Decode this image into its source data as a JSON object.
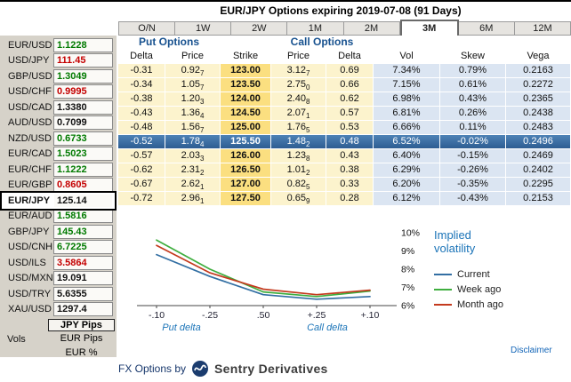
{
  "title": "EUR/JPY Options expiring 2019-07-08 (91 Days)",
  "tabs": [
    "O/N",
    "1W",
    "2W",
    "1M",
    "2M",
    "3M",
    "6M",
    "12M"
  ],
  "active_tab": "3M",
  "sidebar": {
    "vols_label": "Vols",
    "pairs": [
      {
        "pair": "EUR/USD",
        "rate": "1.1228",
        "trend": "up"
      },
      {
        "pair": "USD/JPY",
        "rate": "111.45",
        "trend": "down"
      },
      {
        "pair": "GBP/USD",
        "rate": "1.3049",
        "trend": "up"
      },
      {
        "pair": "USD/CHF",
        "rate": "0.9995",
        "trend": "down"
      },
      {
        "pair": "USD/CAD",
        "rate": "1.3380",
        "trend": "flat"
      },
      {
        "pair": "AUD/USD",
        "rate": "0.7099",
        "trend": "flat"
      },
      {
        "pair": "NZD/USD",
        "rate": "0.6733",
        "trend": "up"
      },
      {
        "pair": "EUR/CAD",
        "rate": "1.5023",
        "trend": "up"
      },
      {
        "pair": "EUR/CHF",
        "rate": "1.1222",
        "trend": "up"
      },
      {
        "pair": "EUR/GBP",
        "rate": "0.8605",
        "trend": "down"
      },
      {
        "pair": "EUR/JPY",
        "rate": "125.14",
        "trend": "flat",
        "selected": true
      },
      {
        "pair": "EUR/AUD",
        "rate": "1.5816",
        "trend": "up"
      },
      {
        "pair": "GBP/JPY",
        "rate": "145.43",
        "trend": "up"
      },
      {
        "pair": "USD/CNH",
        "rate": "6.7225",
        "trend": "up"
      },
      {
        "pair": "USD/ILS",
        "rate": "3.5864",
        "trend": "down"
      },
      {
        "pair": "USD/MXN",
        "rate": "19.091",
        "trend": "flat"
      },
      {
        "pair": "USD/TRY",
        "rate": "5.6355",
        "trend": "flat"
      },
      {
        "pair": "XAU/USD",
        "rate": "1297.4",
        "trend": "flat"
      }
    ],
    "modes": [
      {
        "label": "JPY Pips",
        "selected": true
      },
      {
        "label": "EUR Pips",
        "selected": false
      },
      {
        "label": "EUR %",
        "selected": false
      }
    ]
  },
  "table": {
    "put_header": "Put Options",
    "call_header": "Call Options",
    "columns": [
      "Delta",
      "Price",
      "Strike",
      "Price",
      "Delta",
      "Vol",
      "Skew",
      "Vega"
    ],
    "highlight_strike": "125.50",
    "rows": [
      {
        "put_delta": "-0.31",
        "put_price": "0.927",
        "strike": "123.00",
        "call_price": "3.127",
        "call_delta": "0.69",
        "vol": "7.34%",
        "skew": "0.79%",
        "vega": "0.2163"
      },
      {
        "put_delta": "-0.34",
        "put_price": "1.057",
        "strike": "123.50",
        "call_price": "2.750",
        "call_delta": "0.66",
        "vol": "7.15%",
        "skew": "0.61%",
        "vega": "0.2272"
      },
      {
        "put_delta": "-0.38",
        "put_price": "1.203",
        "strike": "124.00",
        "call_price": "2.408",
        "call_delta": "0.62",
        "vol": "6.98%",
        "skew": "0.43%",
        "vega": "0.2365"
      },
      {
        "put_delta": "-0.43",
        "put_price": "1.364",
        "strike": "124.50",
        "call_price": "2.071",
        "call_delta": "0.57",
        "vol": "6.81%",
        "skew": "0.26%",
        "vega": "0.2438"
      },
      {
        "put_delta": "-0.48",
        "put_price": "1.567",
        "strike": "125.00",
        "call_price": "1.765",
        "call_delta": "0.53",
        "vol": "6.66%",
        "skew": "0.11%",
        "vega": "0.2483"
      },
      {
        "put_delta": "-0.52",
        "put_price": "1.784",
        "strike": "125.50",
        "call_price": "1.482",
        "call_delta": "0.48",
        "vol": "6.52%",
        "skew": "-0.02%",
        "vega": "0.2496"
      },
      {
        "put_delta": "-0.57",
        "put_price": "2.033",
        "strike": "126.00",
        "call_price": "1.238",
        "call_delta": "0.43",
        "vol": "6.40%",
        "skew": "-0.15%",
        "vega": "0.2469"
      },
      {
        "put_delta": "-0.62",
        "put_price": "2.312",
        "strike": "126.50",
        "call_price": "1.012",
        "call_delta": "0.38",
        "vol": "6.29%",
        "skew": "-0.26%",
        "vega": "0.2402"
      },
      {
        "put_delta": "-0.67",
        "put_price": "2.621",
        "strike": "127.00",
        "call_price": "0.825",
        "call_delta": "0.33",
        "vol": "6.20%",
        "skew": "-0.35%",
        "vega": "0.2295"
      },
      {
        "put_delta": "-0.72",
        "put_price": "2.961",
        "strike": "127.50",
        "call_price": "0.659",
        "call_delta": "0.28",
        "vol": "6.12%",
        "skew": "-0.43%",
        "vega": "0.2153"
      }
    ]
  },
  "chart_data": {
    "type": "line",
    "legend_title": "Implied volatility",
    "x_ticks": [
      "-.10",
      "-.25",
      ".50",
      "+.25",
      "+.10"
    ],
    "x_axis_left_label": "Put delta",
    "x_axis_right_label": "Call delta",
    "y_ticks": [
      10,
      9,
      8,
      7,
      6
    ],
    "y_tick_labels": [
      "10%",
      "9%",
      "8%",
      "7%",
      "6%"
    ],
    "ylim": [
      6,
      10
    ],
    "series": [
      {
        "name": "Current",
        "color": "#336fa3",
        "values": [
          8.8,
          7.6,
          6.6,
          6.35,
          6.5
        ]
      },
      {
        "name": "Week ago",
        "color": "#3fae3f",
        "values": [
          9.6,
          8.0,
          6.75,
          6.5,
          6.8
        ]
      },
      {
        "name": "Month ago",
        "color": "#c43a1e",
        "values": [
          9.3,
          7.8,
          6.9,
          6.6,
          6.85
        ]
      }
    ]
  },
  "footer": {
    "disclaimer": "Disclaimer",
    "brand_prefix": "FX Options by",
    "brand_name": "Sentry Derivatives"
  }
}
